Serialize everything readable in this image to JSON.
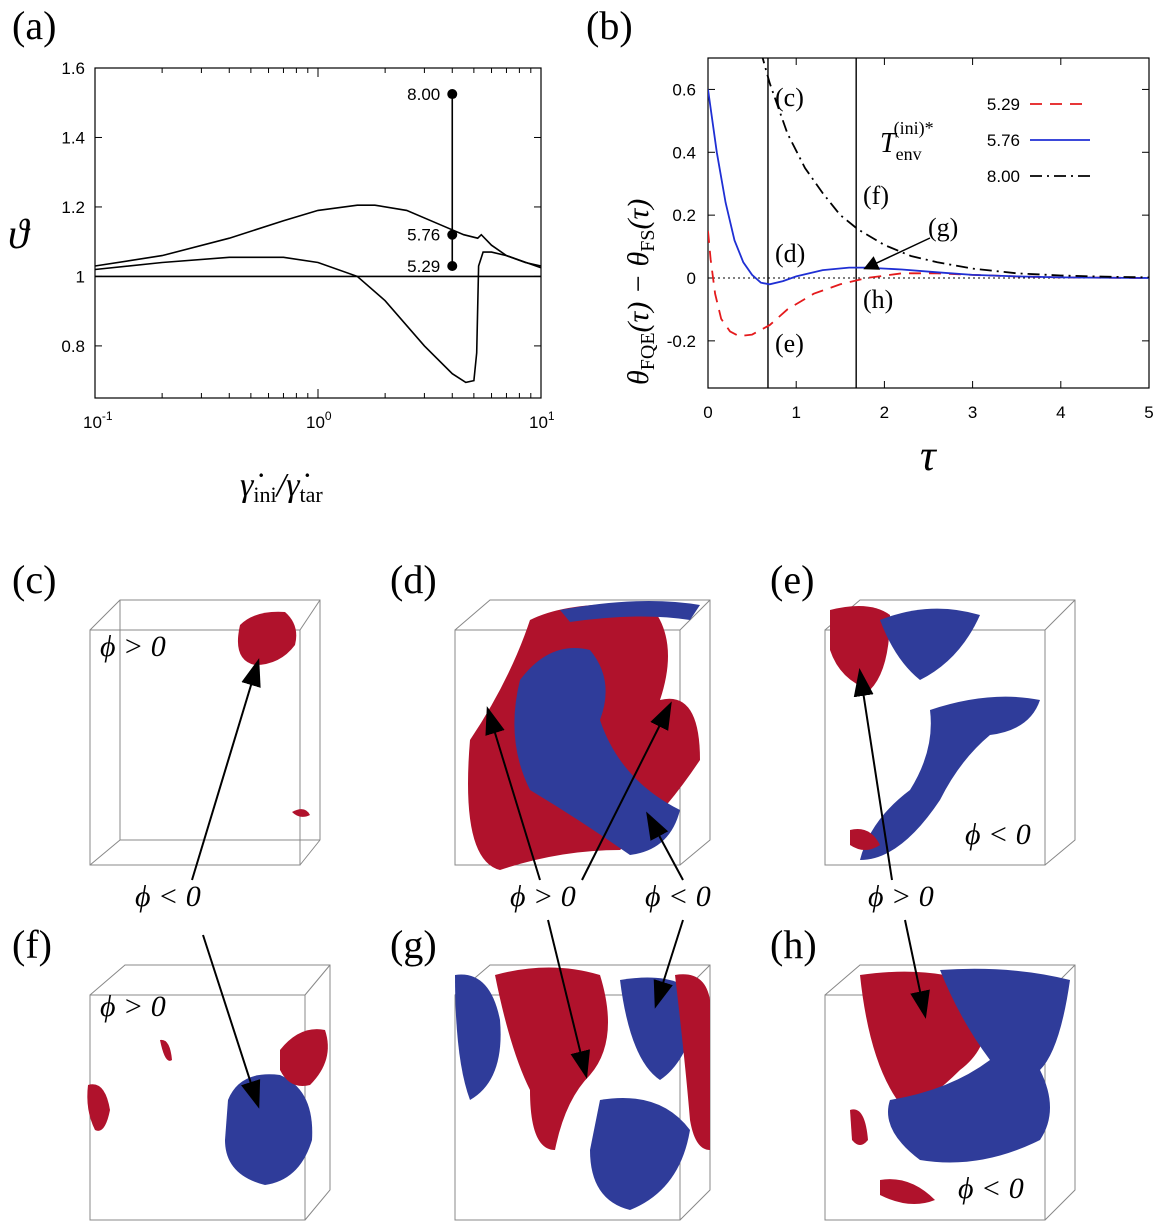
{
  "panels": {
    "a": "(a)",
    "b": "(b)",
    "c": "(c)",
    "d": "(d)",
    "e": "(e)",
    "f": "(f)",
    "g": "(g)",
    "h": "(h)"
  },
  "colors": {
    "red": "#e41a1c",
    "blue": "#1f2fd4",
    "black": "#000000",
    "iso_red": "#b0122c",
    "iso_blue": "#2f3c9a"
  },
  "chart_data": [
    {
      "id": "a",
      "type": "line",
      "xscale": "log",
      "xlim": [
        0.1,
        10
      ],
      "ylim": [
        0.65,
        1.6
      ],
      "xlabel": "γ̇ini/γ̇tar",
      "ylabel": "ϑ",
      "xticks": [
        "10^-1",
        "10^0",
        "10^1"
      ],
      "yticks": [
        "0.8",
        "1",
        "1.2",
        "1.4",
        "1.6"
      ],
      "series": [
        {
          "x": [
            0.1,
            0.2,
            0.4,
            0.7,
            1.0,
            1.5,
            1.8,
            2.5,
            3.5,
            4.5,
            5.2,
            5.4,
            6.0,
            7.0,
            8.5,
            10
          ],
          "values": [
            1.03,
            1.06,
            1.11,
            1.16,
            1.19,
            1.205,
            1.205,
            1.19,
            1.15,
            1.12,
            1.11,
            1.12,
            1.09,
            1.06,
            1.04,
            1.03
          ]
        },
        {
          "x": [
            0.1,
            0.2,
            0.4,
            0.7,
            1.0,
            1.5,
            2.0,
            3.0,
            4.0,
            4.6,
            5.0,
            5.15,
            5.25,
            5.5,
            6.0,
            7.0,
            10
          ],
          "values": [
            1.02,
            1.04,
            1.055,
            1.055,
            1.04,
            1.0,
            0.93,
            0.8,
            0.72,
            0.695,
            0.7,
            0.78,
            1.03,
            1.07,
            1.07,
            1.06,
            1.025
          ]
        },
        {
          "x": [
            0.1,
            10
          ],
          "values": [
            1.0,
            1.0
          ]
        }
      ],
      "markers": [
        {
          "x": 4.0,
          "y": 1.525,
          "label": "8.00"
        },
        {
          "x": 4.0,
          "y": 1.12,
          "label": "5.76"
        },
        {
          "x": 4.0,
          "y": 1.03,
          "label": "5.29"
        }
      ]
    },
    {
      "id": "b",
      "type": "line",
      "xlim": [
        0,
        5
      ],
      "ylim": [
        -0.35,
        0.7
      ],
      "xlabel": "τ",
      "ylabel": "θFQE(τ) − θFS(τ)",
      "xticks": [
        "0",
        "1",
        "2",
        "3",
        "4",
        "5"
      ],
      "yticks": [
        "-0.2",
        "0",
        "0.2",
        "0.4",
        "0.6"
      ],
      "legend_title": "T(ini)*env",
      "legend_position": "top-right",
      "vlines": [
        0.68,
        1.68
      ],
      "series": [
        {
          "name": "5.29",
          "color": "#e41a1c",
          "style": "dashed",
          "x": [
            0,
            0.03,
            0.08,
            0.15,
            0.25,
            0.35,
            0.5,
            0.7,
            0.9,
            1.2,
            1.5,
            1.8,
            2.2,
            2.6,
            3.0,
            3.5,
            4.0,
            5.0
          ],
          "values": [
            0.15,
            0.06,
            -0.05,
            -0.13,
            -0.17,
            -0.185,
            -0.18,
            -0.15,
            -0.1,
            -0.05,
            -0.02,
            0.0,
            0.015,
            0.015,
            0.01,
            0.005,
            0.002,
            0.0
          ]
        },
        {
          "name": "5.76",
          "color": "#1f2fd4",
          "style": "solid",
          "x": [
            0,
            0.05,
            0.1,
            0.2,
            0.3,
            0.4,
            0.5,
            0.6,
            0.7,
            0.85,
            1.0,
            1.3,
            1.6,
            1.8,
            2.2,
            2.6,
            3.0,
            3.5,
            4.0,
            5.0
          ],
          "values": [
            0.6,
            0.5,
            0.4,
            0.24,
            0.12,
            0.05,
            0.01,
            -0.015,
            -0.02,
            -0.01,
            0.005,
            0.025,
            0.033,
            0.033,
            0.027,
            0.018,
            0.01,
            0.005,
            0.002,
            0.0
          ]
        },
        {
          "name": "8.00",
          "color": "#000000",
          "style": "dashdot",
          "x": [
            0.6,
            0.7,
            0.9,
            1.1,
            1.3,
            1.5,
            1.7,
            2.0,
            2.3,
            2.6,
            3.0,
            3.5,
            4.0,
            4.5,
            5.0
          ],
          "values": [
            0.72,
            0.62,
            0.46,
            0.35,
            0.27,
            0.2,
            0.155,
            0.105,
            0.07,
            0.05,
            0.03,
            0.015,
            0.008,
            0.004,
            0.002
          ]
        }
      ],
      "annotations": [
        "(c)",
        "(d)",
        "(e)",
        "(f)",
        "(g)",
        "(h)"
      ]
    }
  ],
  "snapshots": {
    "c_label": "ϕ > 0",
    "f_label": "ϕ > 0",
    "e_label": "ϕ < 0",
    "h_label": "ϕ < 0",
    "mid_row_1": "ϕ < 0",
    "mid_row_2": "ϕ > 0",
    "mid_row_3": "ϕ < 0",
    "mid_row_4": "ϕ > 0"
  }
}
